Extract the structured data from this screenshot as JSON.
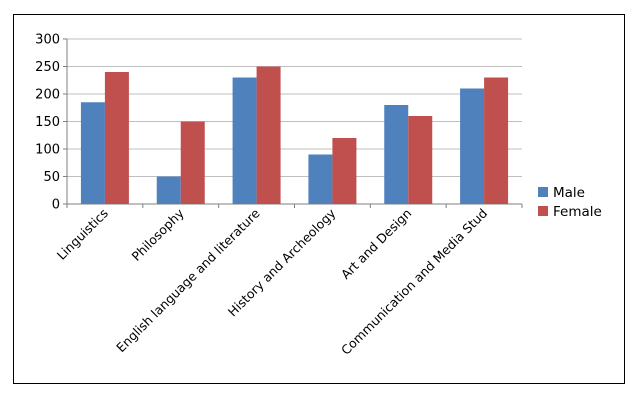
{
  "chart_data": {
    "type": "bar",
    "title": "",
    "xlabel": "",
    "ylabel": "",
    "ylim": [
      0,
      300
    ],
    "yticks": [
      0,
      50,
      100,
      150,
      200,
      250,
      300
    ],
    "grid": true,
    "legend_position": "right",
    "categories": [
      "Linguistics",
      "Philosophy",
      "English language and literature",
      "History and Archeology",
      "Art and Design",
      "Communication and Media Stud"
    ],
    "series": [
      {
        "name": "Male",
        "color": "#4f81bd",
        "values": [
          185,
          50,
          230,
          90,
          180,
          210
        ]
      },
      {
        "name": "Female",
        "color": "#c0504d",
        "values": [
          240,
          150,
          250,
          120,
          160,
          230
        ]
      }
    ]
  }
}
